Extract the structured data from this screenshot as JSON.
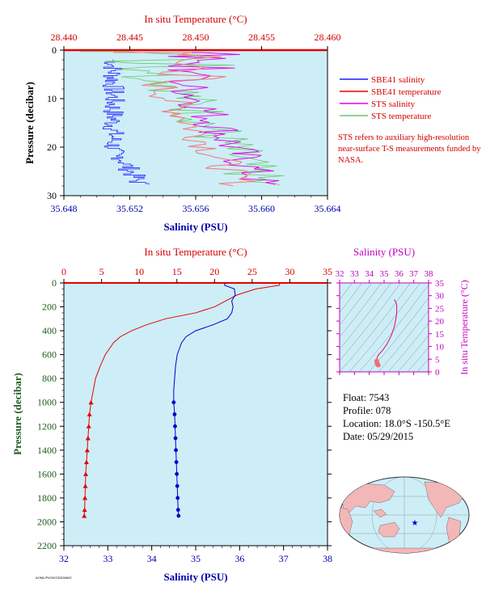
{
  "chart_data": [
    {
      "type": "line",
      "top_axis_title": "In situ Temperature (°C)",
      "xlabel": "Salinity (PSU)",
      "ylabel": "Pressure (decibar)",
      "x_ticks": [
        "35.648",
        "35.652",
        "35.656",
        "35.660",
        "35.664"
      ],
      "xlim": [
        35.648,
        35.664
      ],
      "top_ticks": [
        "28.440",
        "28.445",
        "28.450",
        "28.455",
        "28.460"
      ],
      "toplim": [
        28.44,
        28.46
      ],
      "y_ticks": [
        "0",
        "10",
        "20",
        "30"
      ],
      "ylim": [
        0,
        30
      ],
      "legend": [
        {
          "label": "SBE41 salinity",
          "color": "#1a1aff"
        },
        {
          "label": "SBE41 temperature",
          "color": "#e60000"
        },
        {
          "label": "STS salinity",
          "color": "#e600e6"
        },
        {
          "label": "STS temperature",
          "color": "#66cc66"
        }
      ],
      "note": "STS refers to auxiliary high-resolution near-surface T-S measurements funded by NASA."
    },
    {
      "type": "line",
      "top_axis_title": "In situ Temperature (°C)",
      "xlabel": "Salinity (PSU)",
      "ylabel": "Pressure (decibar)",
      "x_ticks": [
        "32",
        "33",
        "34",
        "35",
        "36",
        "37",
        "38"
      ],
      "xlim": [
        32,
        38
      ],
      "top_ticks": [
        "0",
        "5",
        "10",
        "15",
        "20",
        "25",
        "30",
        "35"
      ],
      "toplim": [
        0,
        35
      ],
      "y_ticks": [
        "0",
        "200",
        "400",
        "600",
        "800",
        "1000",
        "1200",
        "1400",
        "1600",
        "1800",
        "2000",
        "2200"
      ],
      "ylim": [
        0,
        2200
      ],
      "temperature": {
        "color": "#e60000",
        "pressure": [
          0,
          20,
          50,
          100,
          150,
          200,
          250,
          300,
          350,
          400,
          450,
          500,
          600,
          700,
          800,
          900,
          1000,
          1100,
          1200,
          1300,
          1400,
          1500,
          1600,
          1700,
          1800,
          1900,
          1950
        ],
        "values": [
          28.6,
          28.6,
          25.5,
          23.0,
          21.5,
          20.0,
          17.5,
          13.5,
          11.0,
          9.0,
          7.5,
          6.6,
          5.5,
          4.8,
          4.2,
          3.9,
          3.6,
          3.4,
          3.3,
          3.2,
          3.1,
          3.0,
          2.9,
          2.85,
          2.8,
          2.75,
          2.7
        ]
      },
      "salinity": {
        "color": "#0000cc",
        "pressure": [
          0,
          20,
          50,
          100,
          150,
          200,
          250,
          300,
          350,
          400,
          450,
          500,
          600,
          700,
          800,
          900,
          1000,
          1100,
          1200,
          1300,
          1400,
          1500,
          1600,
          1700,
          1800,
          1900,
          1950
        ],
        "values": [
          35.66,
          35.66,
          35.88,
          35.9,
          35.82,
          35.85,
          35.82,
          35.72,
          35.4,
          35.0,
          34.78,
          34.68,
          34.58,
          34.54,
          34.52,
          34.5,
          34.5,
          34.52,
          34.53,
          34.54,
          34.55,
          34.56,
          34.57,
          34.58,
          34.59,
          34.6,
          34.61
        ]
      },
      "marker_start_pressure": 1000
    },
    {
      "type": "scatter",
      "title": "Salinity (PSU)",
      "x_ticks": [
        "32",
        "33",
        "34",
        "35",
        "36",
        "37",
        "38"
      ],
      "xlim": [
        32,
        38
      ],
      "y_ticks": [
        "0",
        "5",
        "10",
        "15",
        "20",
        "25",
        "30",
        "35"
      ],
      "ylim": [
        0,
        35
      ],
      "ylabel": "In situ Temperature (°C)",
      "ts_curve": {
        "salinity": [
          34.6,
          34.55,
          34.52,
          34.5,
          34.52,
          34.6,
          34.9,
          35.2,
          35.5,
          35.7,
          35.8,
          35.85,
          35.85,
          35.7
        ],
        "temperature": [
          2.7,
          3.1,
          3.6,
          4.2,
          5.5,
          6.6,
          8.5,
          11.0,
          14.5,
          18.0,
          21.0,
          23.5,
          26.5,
          28.5
        ]
      },
      "color": "#e6007e"
    }
  ],
  "info": {
    "float": "Float:  7543",
    "profile": "Profile:  078",
    "location": "Location:  18.0°S  -150.5°E",
    "date": "Date:  05/29/2015"
  },
  "credit": "AOML/PhOD/GDD/MWG"
}
